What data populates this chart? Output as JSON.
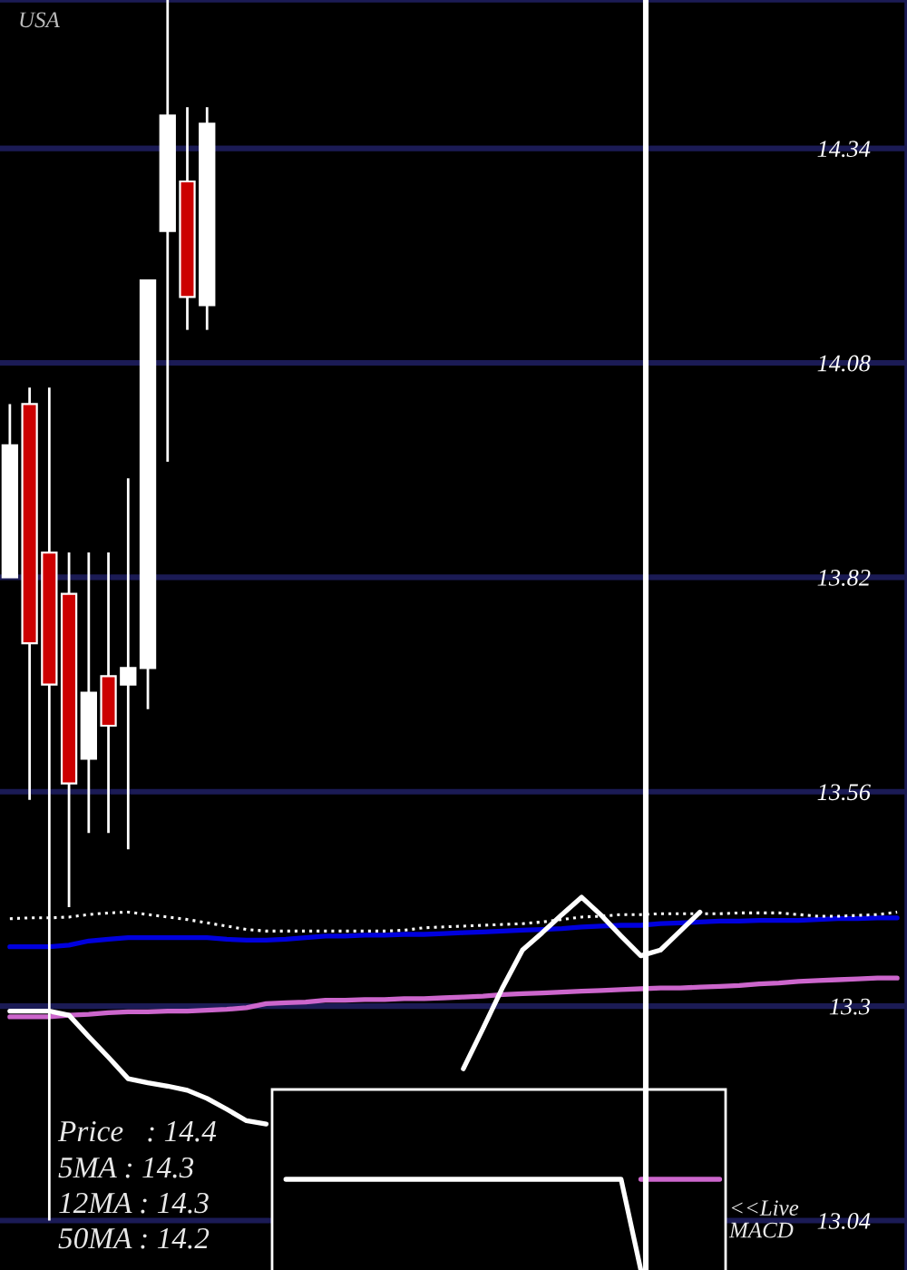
{
  "chart_data": {
    "type": "candlestick",
    "title": "USA",
    "categories": [
      null,
      null,
      null,
      null,
      null,
      null,
      null,
      null,
      null,
      null,
      null,
      null,
      null,
      null,
      null,
      null,
      null,
      null,
      null,
      null,
      null,
      null,
      null,
      null,
      null,
      null,
      null,
      null,
      null,
      null,
      null,
      null,
      null,
      null,
      null,
      null,
      null,
      null,
      null,
      null,
      null,
      null,
      null,
      null,
      null,
      null
    ],
    "ohlc": [
      [
        13.82,
        14.03,
        13.82,
        13.98
      ],
      [
        14.03,
        14.05,
        13.55,
        13.74
      ],
      [
        13.85,
        14.05,
        13.04,
        13.69
      ],
      [
        13.8,
        13.85,
        13.42,
        13.57
      ],
      [
        13.6,
        13.85,
        13.51,
        13.68
      ],
      [
        13.7,
        13.85,
        13.51,
        13.64
      ],
      [
        13.69,
        13.94,
        13.49,
        13.71
      ],
      [
        13.71,
        14.18,
        13.66,
        14.18
      ],
      [
        14.24,
        14.52,
        13.96,
        14.38
      ],
      [
        14.3,
        14.39,
        14.12,
        14.16
      ],
      [
        14.15,
        14.39,
        14.12,
        14.37
      ],
      null,
      null,
      null,
      null,
      null,
      null,
      null,
      null,
      null,
      null,
      null,
      null,
      null,
      null,
      null,
      null,
      null,
      null,
      null,
      null,
      null,
      null,
      null,
      null,
      null,
      null,
      null,
      null,
      null,
      null,
      null,
      null,
      null,
      null,
      null
    ],
    "color": "#ffffff",
    "colors": [
      "#ffffff",
      "#cc0000",
      "#cc0000",
      "#cc0000",
      "#ffffff",
      "#cc0000",
      "#ffffff",
      "#ffffff",
      "#ffffff",
      "#cc0000",
      "#ffffff",
      null,
      null,
      null,
      null,
      null,
      null,
      null,
      null,
      null,
      null,
      null,
      null,
      null,
      null,
      null,
      null,
      null,
      null,
      null,
      null,
      null,
      null,
      null,
      null,
      null,
      null,
      null,
      null,
      null,
      null,
      null,
      null,
      null,
      null,
      null
    ],
    "series": [
      {
        "type": "line",
        "color": "#0000dd",
        "values": [
          13.372,
          13.372,
          13.372,
          13.374,
          13.379,
          13.381,
          13.383,
          13.383,
          13.383,
          13.383,
          13.383,
          13.381,
          13.38,
          13.38,
          13.381,
          13.383,
          13.385,
          13.385,
          13.386,
          13.386,
          13.387,
          13.387,
          13.388,
          13.389,
          13.39,
          13.391,
          13.392,
          13.393,
          13.394,
          13.396,
          13.397,
          13.398,
          13.398,
          13.4,
          13.401,
          13.402,
          13.403,
          13.403,
          13.404,
          13.404,
          13.404,
          13.405,
          13.406,
          13.406,
          13.407,
          13.407
        ]
      },
      {
        "type": "line",
        "color": "#ffffff",
        "line_style": "dotted",
        "values": [
          13.406,
          13.407,
          13.407,
          13.408,
          13.411,
          13.413,
          13.414,
          13.411,
          13.408,
          13.405,
          13.401,
          13.397,
          13.393,
          13.391,
          13.391,
          13.391,
          13.391,
          13.391,
          13.391,
          13.391,
          13.392,
          13.395,
          13.396,
          13.397,
          13.398,
          13.399,
          13.4,
          13.402,
          13.405,
          13.408,
          13.409,
          13.411,
          13.411,
          13.412,
          13.412,
          13.412,
          13.412,
          13.413,
          13.413,
          13.413,
          13.411,
          13.409,
          13.409,
          13.41,
          13.411,
          13.414
        ]
      },
      {
        "type": "line",
        "color": "#cc66cc",
        "values": [
          13.287,
          13.287,
          13.287,
          13.289,
          13.29,
          13.292,
          13.293,
          13.293,
          13.294,
          13.294,
          13.295,
          13.296,
          13.298,
          13.303,
          13.304,
          13.305,
          13.307,
          13.307,
          13.308,
          13.308,
          13.309,
          13.309,
          13.31,
          13.311,
          13.312,
          13.314,
          13.315,
          13.316,
          13.317,
          13.318,
          13.319,
          13.32,
          13.321,
          13.322,
          13.322,
          13.323,
          13.324,
          13.325,
          13.327,
          13.328,
          13.33,
          13.331,
          13.332,
          13.333,
          13.334,
          13.334
        ]
      },
      {
        "type": "line",
        "color": "#ffffff",
        "values": [
          13.294,
          13.294,
          13.294,
          13.289,
          13.263,
          13.238,
          13.212,
          13.207,
          13.203,
          13.198,
          13.188,
          13.175,
          13.161,
          13.157,
          null,
          null,
          null,
          null,
          null,
          null,
          null,
          null,
          null,
          13.224,
          13.273,
          13.323,
          13.368,
          13.389,
          13.411,
          13.432,
          13.41,
          13.385,
          13.361,
          13.368,
          13.391,
          13.414,
          null,
          null,
          null,
          null,
          null,
          null,
          null,
          null,
          null,
          null
        ]
      },
      {
        "type": "line",
        "color": "#ffffff",
        "values": [
          null,
          null,
          null,
          null,
          null,
          null,
          null,
          null,
          null,
          null,
          null,
          null,
          null,
          null,
          13.09,
          13.09,
          13.09,
          13.09,
          13.09,
          13.09,
          13.09,
          13.09,
          13.09,
          13.09,
          13.09,
          13.09,
          13.09,
          13.09,
          13.09,
          13.09,
          13.09,
          13.09,
          12.98,
          null,
          null,
          null,
          null,
          null,
          null,
          null,
          null,
          null,
          null,
          null,
          null,
          null
        ]
      },
      {
        "type": "line",
        "color": "#cc66cc",
        "values": [
          null,
          null,
          null,
          null,
          null,
          null,
          null,
          null,
          null,
          null,
          null,
          null,
          null,
          null,
          null,
          null,
          null,
          null,
          null,
          null,
          null,
          null,
          null,
          null,
          null,
          null,
          null,
          null,
          null,
          null,
          null,
          null,
          13.09,
          13.09,
          13.09,
          13.09,
          13.09,
          null,
          null,
          null,
          null,
          null,
          null,
          null,
          null,
          null
        ]
      }
    ],
    "ylim": [
      12.98,
      14.52
    ],
    "yticks": [
      14.34,
      14.08,
      13.82,
      13.56,
      13.3,
      13.04
    ],
    "grid": "y",
    "tick_labels": "y",
    "annotations": [
      "Price   : 14.4",
      "5MA : 14.3",
      "12MA : 14.3",
      "50MA : 14.2",
      "<<Live\nMACD"
    ]
  }
}
